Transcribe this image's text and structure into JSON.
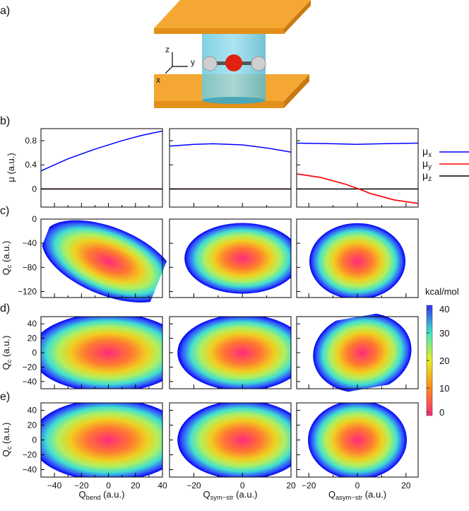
{
  "panel_labels": [
    "a)",
    "b)",
    "c)",
    "d)",
    "e)"
  ],
  "diagram": {
    "axis_x": "x",
    "axis_y": "y",
    "axis_z": "z"
  },
  "colorbar": {
    "label": "kcal/mol",
    "ticks": [
      0,
      10,
      20,
      30,
      40
    ],
    "range": [
      0,
      40
    ],
    "colors": [
      "#ff2a7a",
      "#ff8a1a",
      "#e8f020",
      "#40e8c0",
      "#3030ff"
    ]
  },
  "chart_data": {
    "type": "line",
    "ylabel_b": "μ (a.u.)",
    "ylabel_cde": "Q_c (a.u.)",
    "ylabel_main": "Q",
    "ylabel_sub": "c",
    "ylabel_unit": "(a.u.)",
    "xlabels": [
      {
        "main": "Q",
        "sub": "bend",
        "unit": " (a.u.)"
      },
      {
        "main": "Q",
        "sub": "sym−str",
        "unit": " (a.u.)"
      },
      {
        "main": "Q",
        "sub": "asym−str",
        "unit": " (a.u.)"
      }
    ],
    "xlim": [
      [
        -50,
        40
      ],
      [
        -30,
        20
      ],
      [
        -25,
        25
      ]
    ],
    "xticks": [
      [
        -40,
        -20,
        0,
        20,
        40
      ],
      [
        -20,
        0,
        20
      ],
      [
        -20,
        0,
        20
      ]
    ],
    "b": {
      "ylim": [
        -0.3,
        1.0
      ],
      "yticks": [
        0,
        0.4,
        0.8
      ],
      "legend": [
        {
          "name": "μ",
          "sub": "x",
          "color": "#0000ff"
        },
        {
          "name": "μ",
          "sub": "y",
          "color": "#ff0000"
        },
        {
          "name": "μ",
          "sub": "z",
          "color": "#000000"
        }
      ],
      "series": [
        {
          "mu_x": {
            "x": [
              -50,
              -30,
              -10,
              10,
              25,
              40
            ],
            "y": [
              0.3,
              0.5,
              0.66,
              0.8,
              0.89,
              0.96
            ]
          },
          "mu_y": {
            "x": [
              -50,
              40
            ],
            "y": [
              0,
              0
            ]
          },
          "mu_z": {
            "x": [
              -50,
              40
            ],
            "y": [
              0,
              0
            ]
          }
        },
        {
          "mu_x": {
            "x": [
              -30,
              -20,
              -12,
              0,
              10,
              20
            ],
            "y": [
              0.71,
              0.74,
              0.75,
              0.73,
              0.68,
              0.61
            ]
          },
          "mu_y": {
            "x": [
              -30,
              20
            ],
            "y": [
              0,
              0
            ]
          },
          "mu_z": {
            "x": [
              -30,
              20
            ],
            "y": [
              0,
              0
            ]
          }
        },
        {
          "mu_x": {
            "x": [
              -25,
              -10,
              0,
              10,
              25
            ],
            "y": [
              0.76,
              0.75,
              0.74,
              0.75,
              0.76
            ]
          },
          "mu_y": {
            "x": [
              -25,
              -15,
              -5,
              0,
              5,
              15,
              25
            ],
            "y": [
              0.25,
              0.19,
              0.08,
              0.01,
              -0.07,
              -0.18,
              -0.24
            ]
          },
          "mu_z": {
            "x": [
              -25,
              25
            ],
            "y": [
              0,
              0
            ]
          }
        }
      ]
    },
    "c": {
      "ylim": [
        -130,
        0
      ],
      "yticks": [
        0,
        -40,
        -80,
        -120
      ],
      "min": [
        [
          0,
          -70
        ],
        [
          0,
          -65
        ],
        [
          0,
          -70
        ]
      ]
    },
    "d": {
      "ylim": [
        -50,
        50
      ],
      "yticks": [
        -40,
        -20,
        0,
        20,
        40
      ],
      "min": [
        [
          0,
          0
        ],
        [
          0,
          0
        ],
        [
          2,
          0
        ]
      ]
    },
    "e": {
      "ylim": [
        -50,
        50
      ],
      "yticks": [
        -40,
        -20,
        0,
        20,
        40
      ],
      "min": [
        [
          0,
          0
        ],
        [
          0,
          0
        ],
        [
          0,
          0
        ]
      ]
    }
  }
}
